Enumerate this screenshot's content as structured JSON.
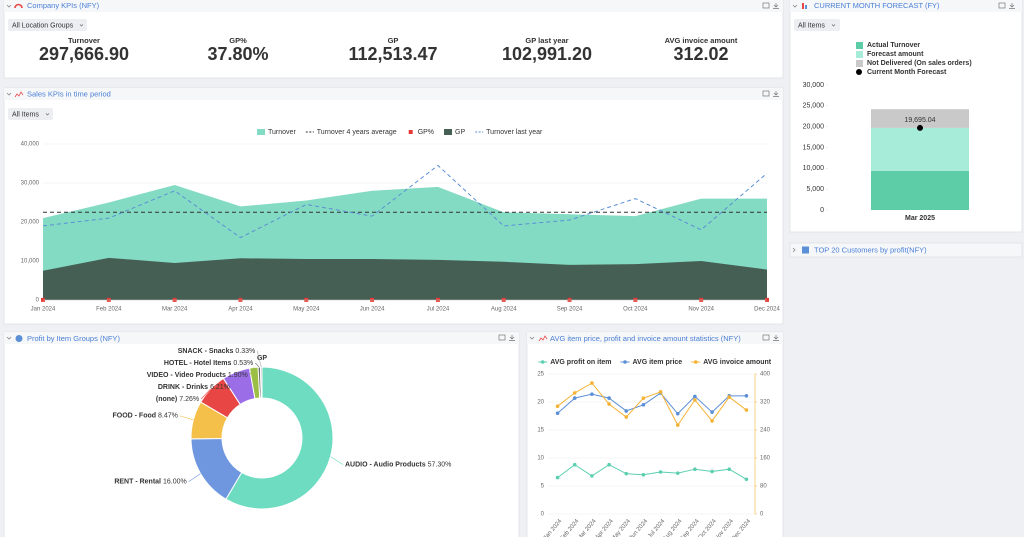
{
  "panels": {
    "kpis": {
      "title": "Company KPIs (NFY)",
      "filter": "All Location Groups",
      "items": [
        {
          "label": "Turnover",
          "value": "297,666.90",
          "color": "#555a5f"
        },
        {
          "label": "GP%",
          "value": "37.80%",
          "color": "#e53935"
        },
        {
          "label": "GP",
          "value": "112,513.47",
          "color": "#555a5f"
        },
        {
          "label": "GP last year",
          "value": "102,991.20",
          "color": "#555a5f"
        },
        {
          "label": "AVG invoice amount",
          "value": "312.02",
          "color": "#f5b335"
        }
      ]
    },
    "sales": {
      "title": "Sales KPIs in time period",
      "filter": "All Items"
    },
    "forecast": {
      "title": "CURRENT MONTH FORECAST (FY)",
      "filter": "All Items"
    },
    "customers": {
      "title": "TOP 20 Customers by profit(NFY)"
    },
    "profit": {
      "title": "Profit by Item Groups (NFY)"
    },
    "avg": {
      "title": "AVG item price, profit and invoice amount statistics (NFY)"
    }
  },
  "chart_data": [
    {
      "type": "combo",
      "categories": [
        "Jan 2024",
        "Feb 2024",
        "Mar 2024",
        "Apr 2024",
        "May 2024",
        "Jun 2024",
        "Jul 2024",
        "Aug 2024",
        "Sep 2024",
        "Oct 2024",
        "Nov 2024",
        "Dec 2024"
      ],
      "ylim": [
        0,
        40000
      ],
      "yticks": [
        0,
        {
          "value": 10000,
          "label": "10,000"
        },
        {
          "value": 20000,
          "label": "20,000"
        },
        {
          "value": 30000,
          "label": "30,000"
        },
        {
          "value": 40000,
          "label": "40,000"
        }
      ],
      "grid": true,
      "series": [
        {
          "name": "Turnover",
          "color": "#84dbc3",
          "mark": "area",
          "values": [
            21000,
            25000,
            29500,
            24000,
            25500,
            28000,
            29000,
            22500,
            22000,
            21500,
            26000,
            26000
          ]
        },
        {
          "name": "Turnover 4 years average",
          "color": "#333333",
          "mark": "line",
          "dashed": true,
          "values": [
            22500,
            22500,
            22500,
            22500,
            22500,
            22500,
            22500,
            22500,
            22500,
            22500,
            22500,
            22500
          ]
        },
        {
          "name": "GP%",
          "color": "#e53935",
          "mark": "point",
          "values": [
            36,
            43,
            32,
            45,
            41,
            38,
            36,
            44,
            41,
            43,
            38,
            30
          ]
        },
        {
          "name": "GP",
          "color": "#465f55",
          "mark": "area",
          "values": [
            7500,
            10800,
            9500,
            10700,
            10500,
            10500,
            10300,
            9800,
            9000,
            9200,
            10000,
            7800
          ]
        },
        {
          "name": "Turnover last year",
          "color": "#5b8fd6",
          "mark": "line",
          "dashed": true,
          "values": [
            19000,
            21000,
            28000,
            16000,
            24500,
            21500,
            34500,
            19000,
            20500,
            26000,
            18000,
            32500
          ]
        }
      ]
    },
    {
      "type": "bar",
      "stacked": true,
      "categories": [
        "Mar 2025"
      ],
      "ylim": [
        0,
        30000
      ],
      "yticks": [
        0,
        {
          "value": 5000,
          "label": "5,000"
        },
        {
          "value": 10000,
          "label": "10,000"
        },
        {
          "value": 15000,
          "label": "15,000"
        },
        {
          "value": 20000,
          "label": "20,000"
        },
        {
          "value": 25000,
          "label": "25,000"
        },
        {
          "value": 30000,
          "label": "30,000"
        }
      ],
      "series": [
        {
          "name": "Actual Turnover",
          "color": "#5dcda8",
          "values": [
            9400
          ]
        },
        {
          "name": "Forecast amount",
          "color": "#a7ebd9",
          "values": [
            10300
          ]
        },
        {
          "name": "Not Delivered (On sales orders)",
          "color": "#c9c9c9",
          "values": [
            4500
          ]
        }
      ],
      "marker": {
        "name": "Current Month Forecast",
        "color": "#000000",
        "values": [
          19695.04
        ],
        "value_labels": [
          "19,695.04"
        ]
      }
    },
    {
      "type": "pie",
      "title": "GP",
      "donut": true,
      "categories": [
        "AUDIO - Audio Products",
        "RENT - Rental",
        "FOOD - Food",
        "(none)",
        "DRINK - Drinks",
        "VIDEO - Video Products",
        "HOTEL - Hotel Items",
        "SNACK - Snacks"
      ],
      "values": [
        57.3,
        16.0,
        8.47,
        7.26,
        6.21,
        1.9,
        0.53,
        0.33
      ],
      "value_labels": [
        "57.30%",
        "16.00%",
        "8.47%",
        "7.26%",
        "6.21%",
        "1.90%",
        "0.53%",
        "0.33%"
      ],
      "colors": [
        "#6ddcc0",
        "#6f97e0",
        "#f5c04a",
        "#e84545",
        "#9b6ee8",
        "#9bbf45",
        "#666666",
        "#aaaaaa"
      ]
    },
    {
      "type": "line",
      "categories": [
        "Jan 2024",
        "Feb 2024",
        "Mar 2024",
        "Apr 2024",
        "May 2024",
        "Jun 2024",
        "Jul 2024",
        "Aug 2024",
        "Sep 2024",
        "Oct 2024",
        "Nov 2024",
        "Dec 2024"
      ],
      "ylim": [
        0,
        25
      ],
      "yticks": [
        0,
        5,
        10,
        15,
        20,
        25
      ],
      "y2lim": [
        0,
        400
      ],
      "y2ticks": [
        0,
        80,
        160,
        240,
        320,
        400
      ],
      "y2color": "#f5b335",
      "grid": true,
      "series": [
        {
          "name": "AVG profit on item",
          "color": "#5ccfb0",
          "values": [
            6.5,
            8.8,
            6.8,
            8.8,
            7.2,
            7.0,
            7.5,
            7.3,
            8.0,
            7.6,
            8.0,
            6.2
          ]
        },
        {
          "name": "AVG item price",
          "color": "#5b8fd6",
          "values": [
            18.0,
            20.7,
            21.4,
            20.7,
            18.4,
            19.5,
            21.6,
            17.9,
            21.0,
            18.2,
            21.1,
            21.1
          ]
        },
        {
          "name": "AVG invoice amount",
          "color": "#f5b335",
          "axis": "y2",
          "values": [
            308,
            346,
            374,
            314,
            277,
            331,
            349,
            254,
            326,
            266,
            334,
            297
          ]
        }
      ]
    }
  ]
}
